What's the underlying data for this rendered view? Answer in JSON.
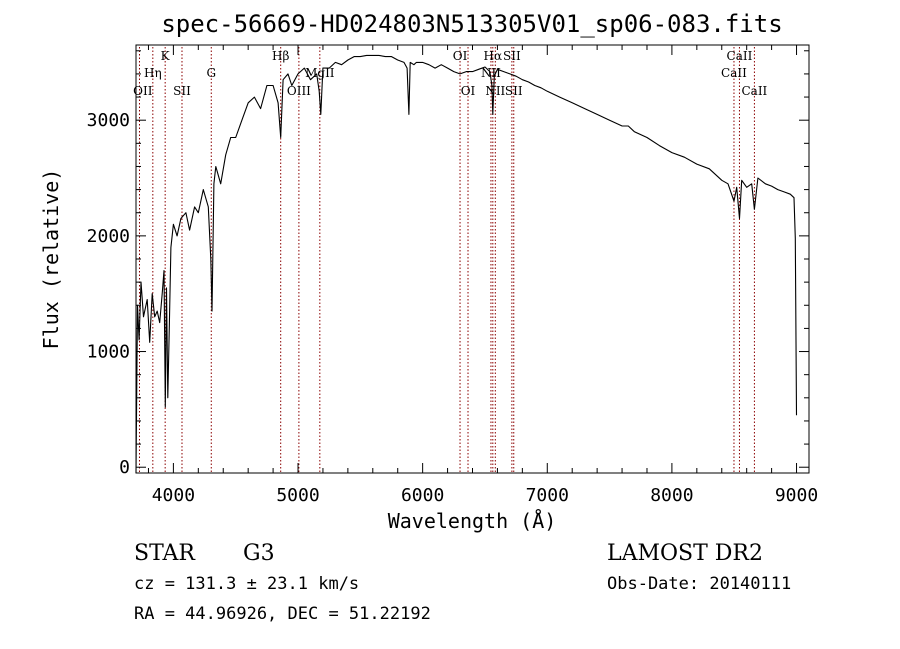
{
  "chart_data": {
    "type": "line",
    "title": "spec-56669-HD024803N513305V01_sp06-083.fits",
    "xlabel": "Wavelength (Å)",
    "ylabel": "Flux (relative)",
    "xlim": [
      3700,
      9100
    ],
    "ylim": [
      -50,
      3650
    ],
    "x_ticks": [
      4000,
      5000,
      6000,
      7000,
      8000,
      9000
    ],
    "y_ticks": [
      0,
      1000,
      2000,
      3000
    ],
    "grid": false,
    "series": [
      {
        "x": [
          3700,
          3712,
          3725,
          3740,
          3760,
          3790,
          3810,
          3830,
          3850,
          3870,
          3890,
          3910,
          3925,
          3935,
          3945,
          3955,
          3968,
          3980,
          4000,
          4030,
          4060,
          4100,
          4130,
          4170,
          4200,
          4240,
          4280,
          4300,
          4310,
          4325,
          4340,
          4380,
          4420,
          4460,
          4500,
          4550,
          4600,
          4650,
          4700,
          4750,
          4800,
          4840,
          4861,
          4880,
          4920,
          4950,
          5000,
          5050,
          5100,
          5150,
          5170,
          5183,
          5200,
          5250,
          5300,
          5350,
          5400,
          5450,
          5500,
          5550,
          5600,
          5650,
          5700,
          5750,
          5800,
          5850,
          5875,
          5890,
          5900,
          5930,
          5950,
          6000,
          6050,
          6100,
          6150,
          6200,
          6250,
          6300,
          6350,
          6400,
          6450,
          6500,
          6540,
          6556,
          6563,
          6575,
          6600,
          6650,
          6700,
          6750,
          6800,
          6850,
          6900,
          6950,
          7000,
          7100,
          7200,
          7300,
          7400,
          7500,
          7600,
          7650,
          7700,
          7800,
          7900,
          8000,
          8100,
          8200,
          8300,
          8400,
          8450,
          8498,
          8520,
          8542,
          8560,
          8600,
          8640,
          8662,
          8690,
          8750,
          8800,
          8850,
          8900,
          8950,
          8980,
          8990,
          9000
        ],
        "values": [
          -50,
          1400,
          1100,
          1600,
          1300,
          1450,
          1080,
          1500,
          1300,
          1350,
          1250,
          1500,
          1700,
          520,
          1550,
          600,
          1250,
          1900,
          2100,
          2000,
          2150,
          2200,
          2050,
          2250,
          2200,
          2400,
          2250,
          1800,
          1350,
          2450,
          2600,
          2450,
          2700,
          2850,
          2850,
          3000,
          3150,
          3200,
          3100,
          3300,
          3300,
          3150,
          2850,
          3350,
          3400,
          3300,
          3400,
          3450,
          3350,
          3400,
          3250,
          3050,
          3450,
          3450,
          3500,
          3480,
          3520,
          3550,
          3550,
          3560,
          3560,
          3560,
          3550,
          3550,
          3520,
          3500,
          3450,
          3050,
          3500,
          3480,
          3500,
          3500,
          3480,
          3450,
          3480,
          3450,
          3420,
          3400,
          3420,
          3420,
          3440,
          3460,
          3420,
          3300,
          3050,
          3380,
          3440,
          3420,
          3400,
          3380,
          3350,
          3330,
          3300,
          3280,
          3250,
          3200,
          3150,
          3100,
          3050,
          3000,
          2950,
          2950,
          2900,
          2850,
          2780,
          2720,
          2680,
          2620,
          2580,
          2480,
          2450,
          2300,
          2420,
          2150,
          2480,
          2420,
          2450,
          2230,
          2500,
          2450,
          2430,
          2400,
          2380,
          2360,
          2330,
          1980,
          450
        ]
      }
    ],
    "lines": [
      {
        "wave": 3728,
        "label": "OII",
        "row": 3,
        "align": "end"
      },
      {
        "wave": 3835,
        "label": "Hη",
        "row": 2,
        "align": "middle"
      },
      {
        "wave": 3934,
        "label": "K",
        "row": 1,
        "align": "middle"
      },
      {
        "wave": 4069,
        "label": "SII",
        "row": 3,
        "align": "middle"
      },
      {
        "wave": 4304,
        "label": "G",
        "row": 2,
        "align": "middle"
      },
      {
        "wave": 4861,
        "label": "Hβ",
        "row": 1,
        "align": "middle"
      },
      {
        "wave": 5007,
        "label": "OIII",
        "row": 3,
        "align": "middle"
      },
      {
        "wave": 5175,
        "label": "MgII",
        "row": 2,
        "align": "middle"
      },
      {
        "wave": 6300,
        "label": "OI",
        "row": 1,
        "align": "middle"
      },
      {
        "wave": 6364,
        "label": "OI",
        "row": 3,
        "align": "middle"
      },
      {
        "wave": 6548,
        "label": "NII",
        "row": 2,
        "align": "middle"
      },
      {
        "wave": 6563,
        "label": "Hα",
        "row": 1,
        "align": "middle"
      },
      {
        "wave": 6583,
        "label": "NII",
        "row": 3,
        "align": "middle"
      },
      {
        "wave": 6716,
        "label": "SII",
        "row": 1,
        "align": "middle"
      },
      {
        "wave": 6731,
        "label": "SII",
        "row": 3,
        "align": "middle"
      },
      {
        "wave": 8498,
        "label": "CaII",
        "row": 2,
        "align": "middle"
      },
      {
        "wave": 8542,
        "label": "CaII",
        "row": 1,
        "align": "middle"
      },
      {
        "wave": 8662,
        "label": "CaII",
        "row": 3,
        "align": "middle"
      }
    ]
  },
  "info": {
    "class": "STAR",
    "subclass": "G3",
    "survey": "LAMOST DR2",
    "cz": "cz = 131.3 ± 23.1 km/s",
    "obs_date": "Obs-Date: 20140111",
    "radec": "RA =  44.96926, DEC =  51.22192"
  },
  "colors": {
    "background": "#ffffff",
    "spectrum": "#000000",
    "line_markers": "#8b0000",
    "axes": "#000000"
  }
}
